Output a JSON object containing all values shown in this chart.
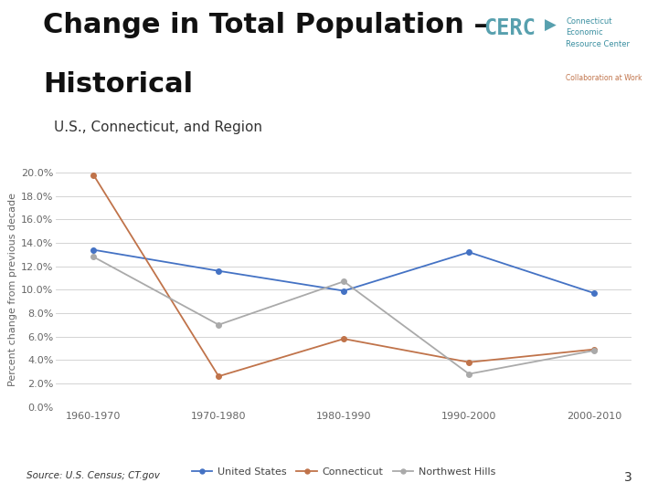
{
  "title_line1": "Change in Total Population –",
  "title_line2": "Historical",
  "subtitle": "U.S., Connecticut, and Region",
  "source": "Source: U.S. Census; CT.gov",
  "ylabel": "Percent change from previous decade",
  "categories": [
    "1960-1970",
    "1970-1980",
    "1980-1990",
    "1990-2000",
    "2000-2010"
  ],
  "series": {
    "United States": {
      "values": [
        0.134,
        0.116,
        0.099,
        0.132,
        0.097
      ],
      "color": "#4472C4",
      "marker": "o"
    },
    "Connecticut": {
      "values": [
        0.198,
        0.026,
        0.058,
        0.038,
        0.049
      ],
      "color": "#C0734A",
      "marker": "o"
    },
    "Northwest Hills": {
      "values": [
        0.128,
        0.07,
        0.107,
        0.028,
        0.048
      ],
      "color": "#AAAAAA",
      "marker": "o"
    }
  },
  "ylim": [
    0.0,
    0.2
  ],
  "yticks": [
    0.0,
    0.02,
    0.04,
    0.06,
    0.08,
    0.1,
    0.12,
    0.14,
    0.16,
    0.18,
    0.2
  ],
  "background_color": "#FFFFFF",
  "plot_bg_color": "#FFFFFF",
  "grid_color": "#CCCCCC",
  "title_fontsize": 22,
  "subtitle_fontsize": 11,
  "axis_label_fontsize": 8,
  "tick_fontsize": 8,
  "legend_fontsize": 8,
  "page_number": "3",
  "cerc_logo_color": "#3A8FA0",
  "cerc_text_color": "#3A8FA0",
  "collab_color": "#C0734A"
}
